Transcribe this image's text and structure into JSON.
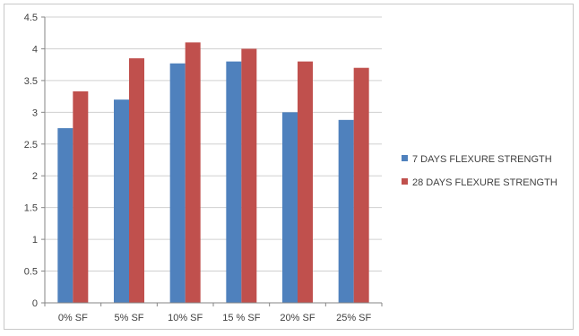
{
  "chart_data": {
    "type": "bar",
    "title": "",
    "xlabel": "",
    "ylabel": "",
    "categories": [
      "0% SF",
      "5% SF",
      "10% SF",
      "15 % SF",
      "20% SF",
      "25% SF"
    ],
    "series": [
      {
        "name": "7 DAYS FLEXURE STRENGTH",
        "color": "#4f81bd",
        "values": [
          2.75,
          3.2,
          3.77,
          3.8,
          3.0,
          2.88
        ]
      },
      {
        "name": "28 DAYS FLEXURE STRENGTH",
        "color": "#c0504d",
        "values": [
          3.33,
          3.85,
          4.1,
          4.0,
          3.8,
          3.7
        ]
      }
    ],
    "ylim": [
      0,
      4.5
    ],
    "yticks": [
      "0",
      "0.5",
      "1",
      "1.5",
      "2",
      "2.5",
      "3",
      "3.5",
      "4",
      "4.5"
    ],
    "grid": true,
    "legend_position": "right"
  }
}
